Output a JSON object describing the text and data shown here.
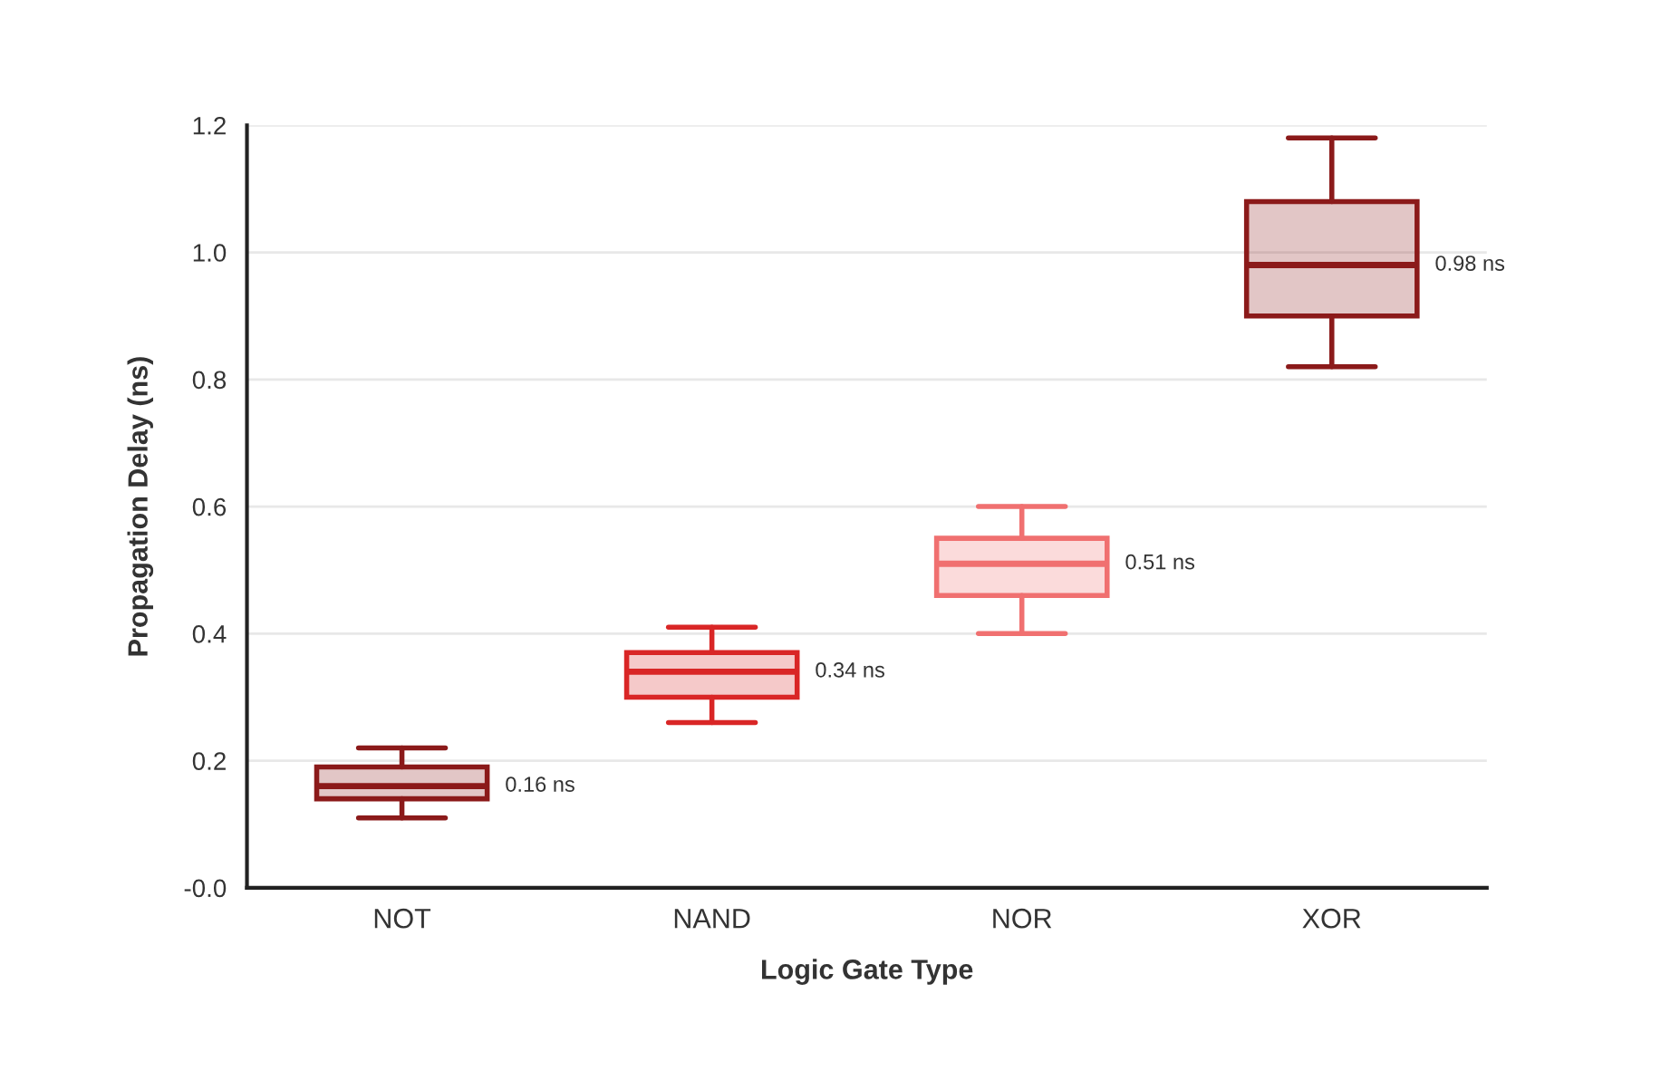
{
  "chart_data": {
    "type": "box",
    "xlabel": "Logic Gate Type",
    "ylabel": "Propagation Delay (ns)",
    "categories": [
      "NOT",
      "NAND",
      "NOR",
      "XOR"
    ],
    "colors": [
      "#8b1a1a",
      "#d92626",
      "#f07070",
      "#8b1a1a"
    ],
    "boxes": [
      {
        "low": 0.11,
        "q1": 0.14,
        "median": 0.16,
        "q3": 0.19,
        "high": 0.22
      },
      {
        "low": 0.26,
        "q1": 0.3,
        "median": 0.34,
        "q3": 0.37,
        "high": 0.41
      },
      {
        "low": 0.4,
        "q1": 0.46,
        "median": 0.51,
        "q3": 0.55,
        "high": 0.6
      },
      {
        "low": 0.82,
        "q1": 0.9,
        "median": 0.98,
        "q3": 1.08,
        "high": 1.18
      }
    ],
    "annotations": [
      "0.16 ns",
      "0.34 ns",
      "0.51 ns",
      "0.98 ns"
    ],
    "ylim": [
      0,
      1.2
    ],
    "yticks": [
      {
        "value": 0,
        "label": "-0.0"
      },
      {
        "value": 0.2,
        "label": "0.2"
      },
      {
        "value": 0.4,
        "label": "0.4"
      },
      {
        "value": 0.6,
        "label": "0.6"
      },
      {
        "value": 0.8,
        "label": "0.8"
      },
      {
        "value": 1.0,
        "label": "1.0"
      },
      {
        "value": 1.2,
        "label": "1.2"
      }
    ],
    "grid": "y"
  }
}
